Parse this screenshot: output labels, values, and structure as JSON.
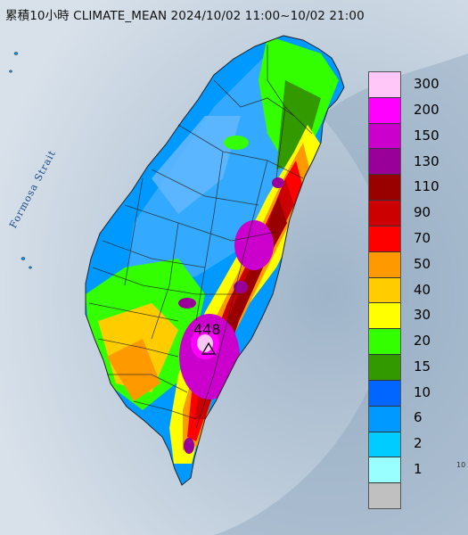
{
  "title": "累積10小時 CLIMATE_MEAN 2024/10/02 11:00~10/02 21:00",
  "strait_label": "Formosa Strait",
  "peak": {
    "value": "448",
    "marker": "triangle-icon"
  },
  "legend": {
    "swatches": [
      "#ffc6f8",
      "#ff00ff",
      "#cc00cc",
      "#990099",
      "#990000",
      "#cc0000",
      "#ff0000",
      "#ff9900",
      "#ffcc00",
      "#ffff00",
      "#33ff00",
      "#339900",
      "#0066ff",
      "#0099ff",
      "#00ccff",
      "#99ffff",
      "#c0c0c0"
    ],
    "labels": [
      "300",
      "200",
      "150",
      "130",
      "110",
      "90",
      "70",
      "50",
      "40",
      "30",
      "20",
      "15",
      "10",
      "6",
      "2",
      "1"
    ]
  }
}
